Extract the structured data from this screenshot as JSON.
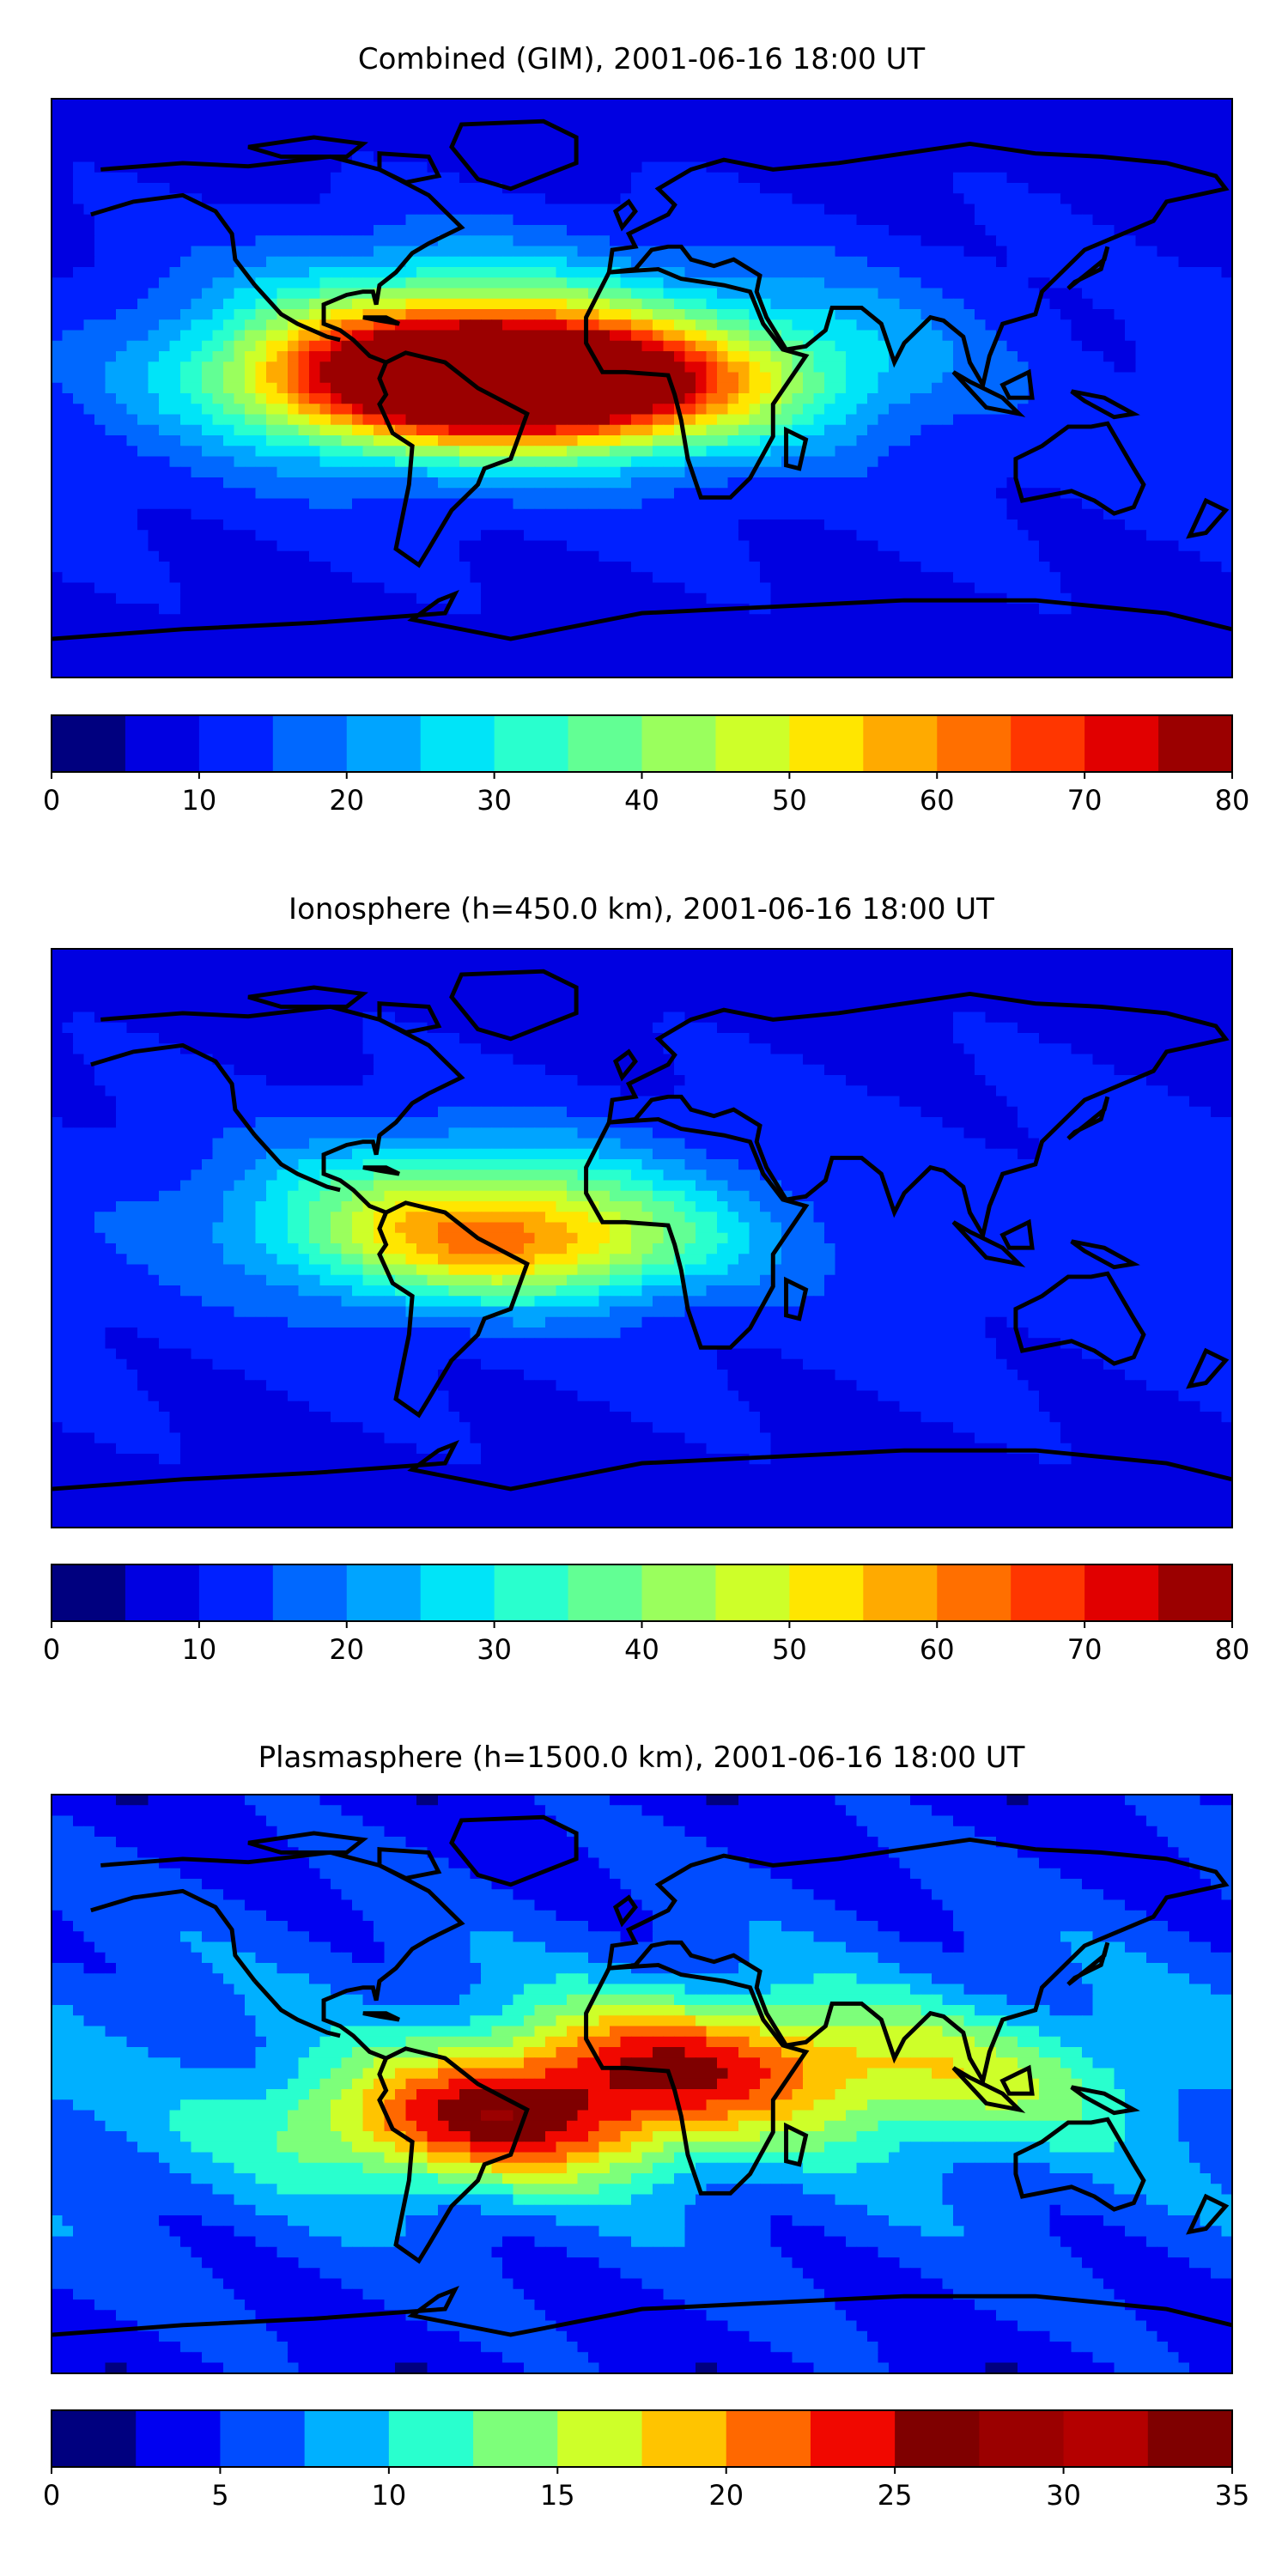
{
  "chart_data": [
    {
      "type": "heatmap",
      "title": "Combined (GIM), 2001-06-16 18:00 UT",
      "colorbar": {
        "min": 0,
        "max": 80,
        "step": 5,
        "ticks": [
          0,
          10,
          20,
          30,
          40,
          50,
          60,
          70,
          80
        ],
        "tick_labels": [
          "0",
          "10",
          "20",
          "30",
          "40",
          "50",
          "60",
          "70",
          "80"
        ],
        "colors": [
          "#00007f",
          "#0000e1",
          "#0020ff",
          "#0068ff",
          "#00a4ff",
          "#00e4f8",
          "#29ffce",
          "#62ff94",
          "#9aff5d",
          "#ceff29",
          "#ffe600",
          "#ffaa00",
          "#ff6f00",
          "#ff3600",
          "#e10000",
          "#9b0000"
        ]
      },
      "peaks": [
        {
          "lon": -45,
          "lat": 2,
          "value": 73,
          "slon": 48,
          "slat": 13
        },
        {
          "lon": -60,
          "lat": 10,
          "value": 55,
          "slon": 48,
          "slat": 20
        },
        {
          "lon": 0,
          "lat": -2,
          "value": 32,
          "slon": 40,
          "slat": 14
        },
        {
          "lon": 60,
          "lat": 15,
          "value": 22,
          "slon": 50,
          "slat": 18
        },
        {
          "lon": 130,
          "lat": 20,
          "value": 8,
          "slon": 40,
          "slat": 20
        }
      ],
      "background_value": 12
    },
    {
      "type": "heatmap",
      "title": "Ionosphere  (h=450.0 km), 2001-06-16 18:00 UT",
      "colorbar": {
        "min": 0,
        "max": 80,
        "step": 5,
        "ticks": [
          0,
          10,
          20,
          30,
          40,
          50,
          60,
          70,
          80
        ],
        "tick_labels": [
          "0",
          "10",
          "20",
          "30",
          "40",
          "50",
          "60",
          "70",
          "80"
        ],
        "colors": [
          "#00007f",
          "#0000e1",
          "#0020ff",
          "#0068ff",
          "#00a4ff",
          "#00e4f8",
          "#29ffce",
          "#62ff94",
          "#9aff5d",
          "#ceff29",
          "#ffe600",
          "#ffaa00",
          "#ff6f00",
          "#ff3600",
          "#e10000",
          "#9b0000"
        ]
      },
      "peaks": [
        {
          "lon": -55,
          "lat": 10,
          "value": 42,
          "slon": 45,
          "slat": 15
        },
        {
          "lon": -45,
          "lat": -5,
          "value": 38,
          "slon": 40,
          "slat": 12
        },
        {
          "lon": 0,
          "lat": 0,
          "value": 20,
          "slon": 35,
          "slat": 12
        }
      ],
      "background_value": 12
    },
    {
      "type": "heatmap",
      "title": "Plasmasphere (h=1500.0 km), 2001-06-16 18:00 UT",
      "colorbar": {
        "min": 0,
        "max": 35,
        "step": 2.5,
        "ticks": [
          0,
          5,
          10,
          15,
          20,
          25,
          30,
          35
        ],
        "tick_labels": [
          "0",
          "5",
          "10",
          "15",
          "20",
          "25",
          "30",
          "35"
        ],
        "colors": [
          "#00007f",
          "#0000f1",
          "#004cff",
          "#00b0ff",
          "#29ffce",
          "#7dff7a",
          "#ceff29",
          "#ffc400",
          "#ff6800",
          "#f10800",
          "#7f0000",
          "#9b0000",
          "#b40000",
          "#7f0000"
        ]
      },
      "peaks": [
        {
          "lon": -45,
          "lat": -12,
          "value": 24,
          "slon": 45,
          "slat": 14
        },
        {
          "lon": 15,
          "lat": 8,
          "value": 21,
          "slon": 45,
          "slat": 14
        },
        {
          "lon": 100,
          "lat": 0,
          "value": 14,
          "slon": 40,
          "slat": 15
        }
      ],
      "background_value": 7
    }
  ]
}
